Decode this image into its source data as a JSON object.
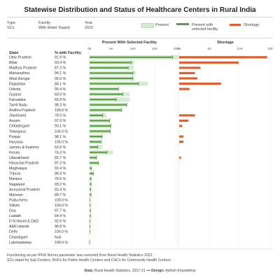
{
  "title": "Statewise Distribution and Status of Healthcare Centers in Rural India",
  "filters": [
    {
      "label": "Type",
      "value": "SCs"
    },
    {
      "label": "Facility",
      "value": "With Water Supply"
    },
    {
      "label": "Year",
      "value": "2021"
    }
  ],
  "legend": {
    "present": "Present",
    "present_with": "Present with selected facility",
    "shortage": "Shortage"
  },
  "colors": {
    "present": "#d4ecd0",
    "present_with": "#5e9c46",
    "shortage": "#e0602d"
  },
  "columns": {
    "state": "State",
    "pct": "% with Facility"
  },
  "sections": {
    "present": "Present With Selected Facility",
    "shortage": "Shortage"
  },
  "notes": {
    "line1": "Functioning as per IPHS Norms parameter was removed from Rural Health Statistics 2021.",
    "line2": "SCs stand for Sub Centers, PHCs for Public Health Centers and CHCs for Community Health Centers."
  },
  "source": {
    "label": "Data:",
    "value": "Rural Health Statistics, 2017-21",
    "sep": "•••",
    "designer_label": "Design:",
    "designer": "Ashish Khandelkar"
  },
  "chart_data": {
    "type": "bar",
    "present_axis": {
      "ticks": [
        "0K",
        "5K",
        "10K",
        "15K",
        "20K"
      ],
      "min": 0,
      "max": 20000
    },
    "shortage_axis": {
      "ticks": [
        "0K",
        "5K",
        "10K",
        "15K"
      ],
      "min": 0,
      "max": 15000
    },
    "rows": [
      {
        "state": "Uttar Pradesh",
        "pct": "91.9 %",
        "present": 20800,
        "with_facility": 19100,
        "shortage": 14500
      },
      {
        "state": "Bihar",
        "pct": "93.4 %",
        "present": 10300,
        "with_facility": 9600,
        "shortage": 9800
      },
      {
        "state": "Madhya Pradesh",
        "pct": "87.3 %",
        "present": 10200,
        "with_facility": 8900,
        "shortage": 3500
      },
      {
        "state": "Maharashtra",
        "pct": "94.1 %",
        "present": 10600,
        "with_facility": 10000,
        "shortage": 2600
      },
      {
        "state": "West Bengal",
        "pct": "95.6 %",
        "present": 10350,
        "with_facility": 9900,
        "shortage": 3000
      },
      {
        "state": "Rajasthan",
        "pct": "84.1 %",
        "present": 13400,
        "with_facility": 11300,
        "shortage": 6900
      },
      {
        "state": "Odisha",
        "pct": "99.4 %",
        "present": 6700,
        "with_facility": 6650,
        "shortage": 1700
      },
      {
        "state": "Gujarat",
        "pct": "83.0 %",
        "present": 9200,
        "with_facility": 7640,
        "shortage": 0
      },
      {
        "state": "Karnataka",
        "pct": "65.9 %",
        "present": 9300,
        "with_facility": 6130,
        "shortage": 0
      },
      {
        "state": "Tamil Nadu",
        "pct": "98.3 %",
        "present": 8700,
        "with_facility": 8550,
        "shortage": 0
      },
      {
        "state": "Andhra Pradesh",
        "pct": "100.0 %",
        "present": 7400,
        "with_facility": 7400,
        "shortage": 0
      },
      {
        "state": "Jharkhand",
        "pct": "78.5 %",
        "present": 3850,
        "with_facility": 3020,
        "shortage": 2600
      },
      {
        "state": "Assam",
        "pct": "97.9 %",
        "present": 4700,
        "with_facility": 4600,
        "shortage": 1500
      },
      {
        "state": "Chhattisgarh",
        "pct": "93.1 %",
        "present": 5200,
        "with_facility": 4840,
        "shortage": 500
      },
      {
        "state": "Telangana",
        "pct": "100.0 %",
        "present": 4750,
        "with_facility": 4750,
        "shortage": 0
      },
      {
        "state": "Punjab",
        "pct": "98.1 %",
        "present": 2950,
        "with_facility": 2890,
        "shortage": 700
      },
      {
        "state": "Haryana",
        "pct": "100.0 %",
        "present": 2650,
        "with_facility": 2650,
        "shortage": 700
      },
      {
        "state": "Jammu & Kashmir",
        "pct": "63.6 %",
        "present": 2950,
        "with_facility": 1880,
        "shortage": 0
      },
      {
        "state": "Kerala",
        "pct": "74.3 %",
        "present": 5400,
        "with_facility": 4010,
        "shortage": 0
      },
      {
        "state": "Uttarakhand",
        "pct": "82.7 %",
        "present": 1850,
        "with_facility": 1530,
        "shortage": 300
      },
      {
        "state": "Himachal Pradesh",
        "pct": "97.3 %",
        "present": 2100,
        "with_facility": 2040,
        "shortage": 0
      },
      {
        "state": "Meghalaya",
        "pct": "92.4 %",
        "present": 480,
        "with_facility": 440,
        "shortage": 0
      },
      {
        "state": "Tripura",
        "pct": "86.3 %",
        "present": 1000,
        "with_facility": 860,
        "shortage": 0
      },
      {
        "state": "Manipur",
        "pct": "78.6 %",
        "present": 420,
        "with_facility": 330,
        "shortage": 0
      },
      {
        "state": "Nagaland",
        "pct": "93.2 %",
        "present": 400,
        "with_facility": 370,
        "shortage": 0
      },
      {
        "state": "Arunachal Pradesh",
        "pct": "83.4 %",
        "present": 300,
        "with_facility": 250,
        "shortage": 0
      },
      {
        "state": "Mizoram",
        "pct": "89.7 %",
        "present": 380,
        "with_facility": 340,
        "shortage": 0
      },
      {
        "state": "Puducherry",
        "pct": "100.0 %",
        "present": 80,
        "with_facility": 80,
        "shortage": 0
      },
      {
        "state": "Sikkim",
        "pct": "100.0 %",
        "present": 150,
        "with_facility": 150,
        "shortage": 0
      },
      {
        "state": "Goa",
        "pct": "97.7 %",
        "present": 220,
        "with_facility": 215,
        "shortage": 0
      },
      {
        "state": "Ladakh",
        "pct": "64.4 %",
        "present": 300,
        "with_facility": 190,
        "shortage": 0
      },
      {
        "state": "D N Haveli & D&D",
        "pct": "92.6 %",
        "present": 120,
        "with_facility": 110,
        "shortage": 0
      },
      {
        "state": "A&N Islands",
        "pct": "96.8 %",
        "present": 120,
        "with_facility": 115,
        "shortage": 0
      },
      {
        "state": "Delhi",
        "pct": "100.0 %",
        "present": 60,
        "with_facility": 60,
        "shortage": 0
      },
      {
        "state": "Chandigarh",
        "pct": "Null",
        "present": 0,
        "with_facility": 0,
        "shortage": 0
      },
      {
        "state": "Lakshadweep",
        "pct": "100.0 %",
        "present": 15,
        "with_facility": 15,
        "shortage": 0
      }
    ]
  }
}
